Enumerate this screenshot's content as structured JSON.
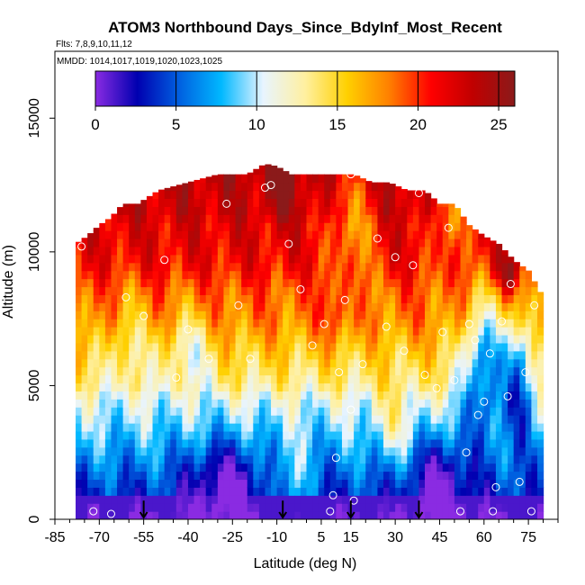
{
  "chart_data": {
    "type": "heatmap",
    "title": "ATOM3 Northbound Days_Since_BdyInf_Most_Recent",
    "subtitle_flights": "Flts: 7,8,9,10,11,12",
    "subtitle_dates": "MMDD: 1014,1017,1019,1020,1023,1025",
    "xlabel": "Latitude (deg N)",
    "ylabel": "Altitude (m)",
    "xlim": [
      -85,
      85
    ],
    "ylim": [
      0,
      17500
    ],
    "x_ticks": [
      "-85",
      "-70",
      "-55",
      "-40",
      "-25",
      "-10",
      "5",
      "15",
      "30",
      "45",
      "60",
      "75"
    ],
    "x_tick_values": [
      -85,
      -70,
      -55,
      -40,
      -25,
      -10,
      5,
      15,
      30,
      45,
      60,
      75
    ],
    "y_ticks": [
      "0",
      "5000",
      "10000",
      "15000"
    ],
    "y_tick_values": [
      0,
      5000,
      10000,
      15000
    ],
    "colorbar": {
      "min": 0,
      "max": 26,
      "ticks": [
        "0",
        "5",
        "10",
        "15",
        "20",
        "25"
      ],
      "tick_values": [
        0,
        5,
        10,
        15,
        20,
        25
      ],
      "colors": [
        "#8a2be2",
        "#0000b0",
        "#0060e0",
        "#00b8ff",
        "#e8f4ff",
        "#fff0a0",
        "#ffd000",
        "#ff8000",
        "#ff0000",
        "#c00000",
        "#8b1a1a"
      ]
    },
    "arrows_latitude": [
      -55,
      -8,
      15,
      38
    ],
    "column_top_altitude": [
      [
        -78,
        10300
      ],
      [
        -74,
        10600
      ],
      [
        -70,
        11000
      ],
      [
        -66,
        11300
      ],
      [
        -62,
        11800
      ],
      [
        -57,
        11800
      ],
      [
        -50,
        12300
      ],
      [
        -40,
        12600
      ],
      [
        -30,
        12900
      ],
      [
        -20,
        12900
      ],
      [
        -14,
        13300
      ],
      [
        -10,
        13200
      ],
      [
        -5,
        12900
      ],
      [
        0,
        12900
      ],
      [
        5,
        12900
      ],
      [
        10,
        12900
      ],
      [
        16,
        12900
      ],
      [
        22,
        12600
      ],
      [
        28,
        12600
      ],
      [
        34,
        12300
      ],
      [
        40,
        12300
      ],
      [
        45,
        11800
      ],
      [
        50,
        11800
      ],
      [
        55,
        11000
      ],
      [
        60,
        10600
      ],
      [
        65,
        10300
      ],
      [
        70,
        9700
      ],
      [
        75,
        9300
      ],
      [
        80,
        8300
      ]
    ],
    "gradient_stops": [
      [
        0,
        0.5
      ],
      [
        200,
        1.5
      ],
      [
        400,
        2
      ],
      [
        700,
        3
      ],
      [
        1000,
        4
      ],
      [
        1500,
        5
      ],
      [
        2000,
        6
      ],
      [
        2500,
        7
      ],
      [
        3000,
        8
      ],
      [
        3500,
        9
      ],
      [
        4000,
        10
      ],
      [
        4500,
        11
      ],
      [
        5000,
        13
      ],
      [
        5500,
        14
      ],
      [
        6000,
        15
      ],
      [
        6500,
        16
      ],
      [
        7000,
        17
      ],
      [
        7500,
        18
      ],
      [
        8000,
        18.5
      ],
      [
        8500,
        19
      ],
      [
        9000,
        20
      ],
      [
        9500,
        21
      ],
      [
        10000,
        21.5
      ],
      [
        10500,
        22
      ],
      [
        11000,
        22
      ],
      [
        11500,
        23
      ],
      [
        12000,
        23
      ],
      [
        12500,
        23.5
      ],
      [
        13000,
        24
      ],
      [
        13500,
        24
      ]
    ],
    "low_anomalies": [
      {
        "lat": -28,
        "alt": 1500,
        "dlat": 12,
        "dalt": 1600,
        "delta": -5
      },
      {
        "lat": 45,
        "alt": 1500,
        "dlat": 10,
        "dalt": 1800,
        "delta": -5
      },
      {
        "lat": 60,
        "alt": 6000,
        "dlat": 7,
        "dalt": 2500,
        "delta": -9
      },
      {
        "lat": 72,
        "alt": 5500,
        "dlat": 5,
        "dalt": 2500,
        "delta": -8
      },
      {
        "lat": -5,
        "alt": 1200,
        "dlat": 6,
        "dalt": 1500,
        "delta": 4
      },
      {
        "lat": 30,
        "alt": 3500,
        "dlat": 8,
        "dalt": 1500,
        "delta": 3
      },
      {
        "lat": 15,
        "alt": 11000,
        "dlat": 8,
        "dalt": 2500,
        "delta": -5
      },
      {
        "lat": 48,
        "alt": 11500,
        "dlat": 6,
        "dalt": 2000,
        "delta": -5
      },
      {
        "lat": -40,
        "alt": 6500,
        "dlat": 8,
        "dalt": 1500,
        "delta": -4
      },
      {
        "lat": -8,
        "alt": 12500,
        "dlat": 5,
        "dalt": 1200,
        "delta": 3
      },
      {
        "lat": 68,
        "alt": 9200,
        "dlat": 4,
        "dalt": 800,
        "delta": 5
      },
      {
        "lat": 10,
        "alt": 8000,
        "dlat": 5,
        "dalt": 1500,
        "delta": 3
      },
      {
        "lat": -60,
        "alt": 6800,
        "dlat": 6,
        "dalt": 1800,
        "delta": -3
      }
    ],
    "sample_points": [
      [
        -76,
        10200
      ],
      [
        -72,
        300
      ],
      [
        -66,
        200
      ],
      [
        -61,
        8300
      ],
      [
        -55,
        7600
      ],
      [
        -48,
        9700
      ],
      [
        -44,
        5300
      ],
      [
        -40,
        7100
      ],
      [
        -33,
        6000
      ],
      [
        -27,
        11800
      ],
      [
        -23,
        8000
      ],
      [
        -19,
        6000
      ],
      [
        -14,
        12400
      ],
      [
        -12,
        12500
      ],
      [
        -6,
        10300
      ],
      [
        -2,
        8600
      ],
      [
        2,
        6500
      ],
      [
        6,
        7300
      ],
      [
        8,
        300
      ],
      [
        9,
        900
      ],
      [
        10,
        2300
      ],
      [
        11,
        5500
      ],
      [
        13,
        8200
      ],
      [
        15,
        12900
      ],
      [
        15,
        4100
      ],
      [
        16,
        700
      ],
      [
        19,
        5800
      ],
      [
        24,
        10500
      ],
      [
        27,
        7200
      ],
      [
        30,
        9800
      ],
      [
        33,
        6300
      ],
      [
        36,
        9500
      ],
      [
        38,
        12200
      ],
      [
        40,
        5400
      ],
      [
        44,
        4900
      ],
      [
        46,
        7000
      ],
      [
        48,
        10900
      ],
      [
        50,
        5200
      ],
      [
        52,
        300
      ],
      [
        54,
        2500
      ],
      [
        55,
        7300
      ],
      [
        57,
        6700
      ],
      [
        58,
        3900
      ],
      [
        60,
        4400
      ],
      [
        62,
        6200
      ],
      [
        63,
        300
      ],
      [
        64,
        1200
      ],
      [
        66,
        7400
      ],
      [
        68,
        4600
      ],
      [
        69,
        8800
      ],
      [
        72,
        1400
      ],
      [
        74,
        5500
      ],
      [
        76,
        300
      ],
      [
        77,
        8000
      ]
    ]
  }
}
